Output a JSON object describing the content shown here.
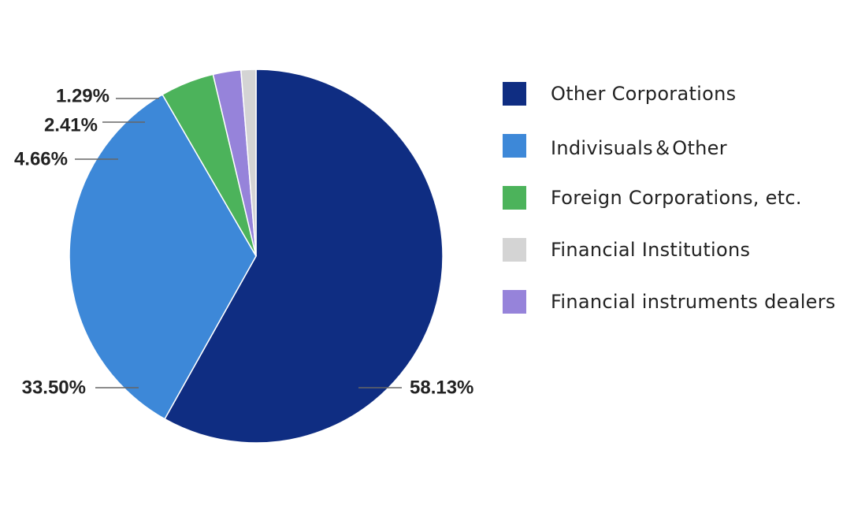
{
  "chart_data": {
    "type": "pie",
    "slices": [
      {
        "label": "Other Corporations",
        "value": 58.13,
        "display": "58.13%",
        "color": "#0f2d82"
      },
      {
        "label": "Indivisuals＆Other",
        "value": 33.5,
        "display": "33.50%",
        "color": "#3d88d8"
      },
      {
        "label": "Foreign Corporations, etc.",
        "value": 4.66,
        "display": "4.66%",
        "color": "#4cb35b"
      },
      {
        "label": "Financial instruments dealers",
        "value": 2.41,
        "display": "2.41%",
        "color": "#9683da"
      },
      {
        "label": "Financial Institutions",
        "value": 1.29,
        "display": "1.29%",
        "color": "#d4d4d4"
      }
    ],
    "legend": {
      "placement": "right",
      "order": [
        "Other Corporations",
        "Indivisuals＆Other",
        "Foreign Corporations, etc.",
        "Financial Institutions",
        "Financial instruments dealers"
      ]
    }
  }
}
